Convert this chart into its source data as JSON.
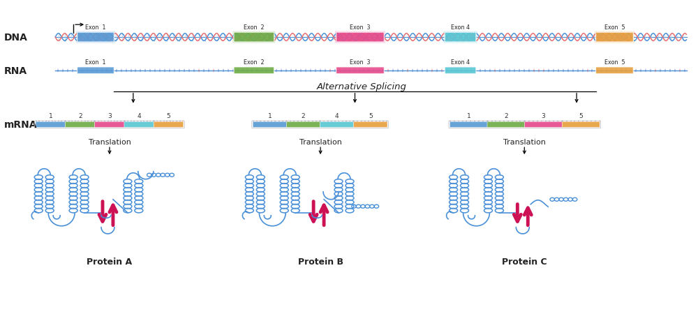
{
  "title": "Alternative Splicing",
  "background_color": "#ffffff",
  "dna_color": "#4a90d9",
  "dna_color2": "#e87070",
  "exon_colors": {
    "1": "#5b9bd5",
    "2": "#70ad47",
    "3": "#e74c8c",
    "4": "#5bc8d4",
    "5": "#e8a040"
  },
  "rna_line_color": "#4a90d9",
  "protein_color": "#4a90d9",
  "beta_color": "#cc1155",
  "protein_names": [
    "Protein A",
    "Protein B",
    "Protein C"
  ],
  "dna_label": "DNA",
  "rna_label": "RNA",
  "mrna_label": "mRNA",
  "alt_splicing_text": "Alternative Splicing"
}
